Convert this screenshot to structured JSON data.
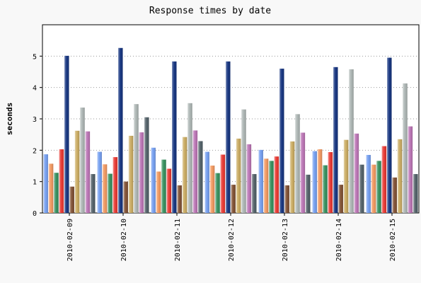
{
  "chart_data": {
    "type": "bar",
    "title": "Response times by date",
    "xlabel": "",
    "ylabel": "seconds",
    "ylim": [
      0,
      6
    ],
    "yticks": [
      0,
      1,
      2,
      3,
      4,
      5
    ],
    "grid": "horizontal dotted",
    "legend": "none",
    "categories": [
      "2010-02-09",
      "2010-02-10",
      "2010-02-11",
      "2010-02-12",
      "2010-02-13",
      "2010-02-14",
      "2010-02-15"
    ],
    "series": [
      {
        "color": "#6f9bef",
        "values": [
          1.87,
          1.95,
          2.08,
          1.95,
          2.01,
          1.97,
          1.85
        ]
      },
      {
        "color": "#f0945a",
        "values": [
          1.57,
          1.55,
          1.32,
          1.51,
          1.73,
          2.03,
          1.54
        ]
      },
      {
        "color": "#2e8b57",
        "values": [
          1.28,
          1.25,
          1.7,
          1.27,
          1.66,
          1.52,
          1.66
        ]
      },
      {
        "color": "#e8312a",
        "values": [
          2.03,
          1.78,
          1.41,
          1.86,
          1.8,
          1.94,
          2.13
        ]
      },
      {
        "color": "#0c2c7a",
        "values": [
          5.01,
          5.26,
          4.83,
          4.83,
          4.6,
          4.65,
          4.95
        ]
      },
      {
        "color": "#7b4a2c",
        "values": [
          0.84,
          1.0,
          0.88,
          0.9,
          0.88,
          0.9,
          1.13
        ]
      },
      {
        "color": "#c8a85c",
        "values": [
          2.62,
          2.46,
          2.42,
          2.37,
          2.28,
          2.33,
          2.35
        ]
      },
      {
        "color": "#a9b2b0",
        "values": [
          3.36,
          3.47,
          3.5,
          3.3,
          3.15,
          4.58,
          4.13
        ]
      },
      {
        "color": "#b86fb2",
        "values": [
          2.6,
          2.57,
          2.63,
          2.19,
          2.56,
          2.53,
          2.76
        ]
      },
      {
        "color": "#4b5a62",
        "values": [
          1.24,
          3.05,
          2.29,
          1.24,
          1.22,
          1.54,
          1.24
        ]
      }
    ]
  }
}
